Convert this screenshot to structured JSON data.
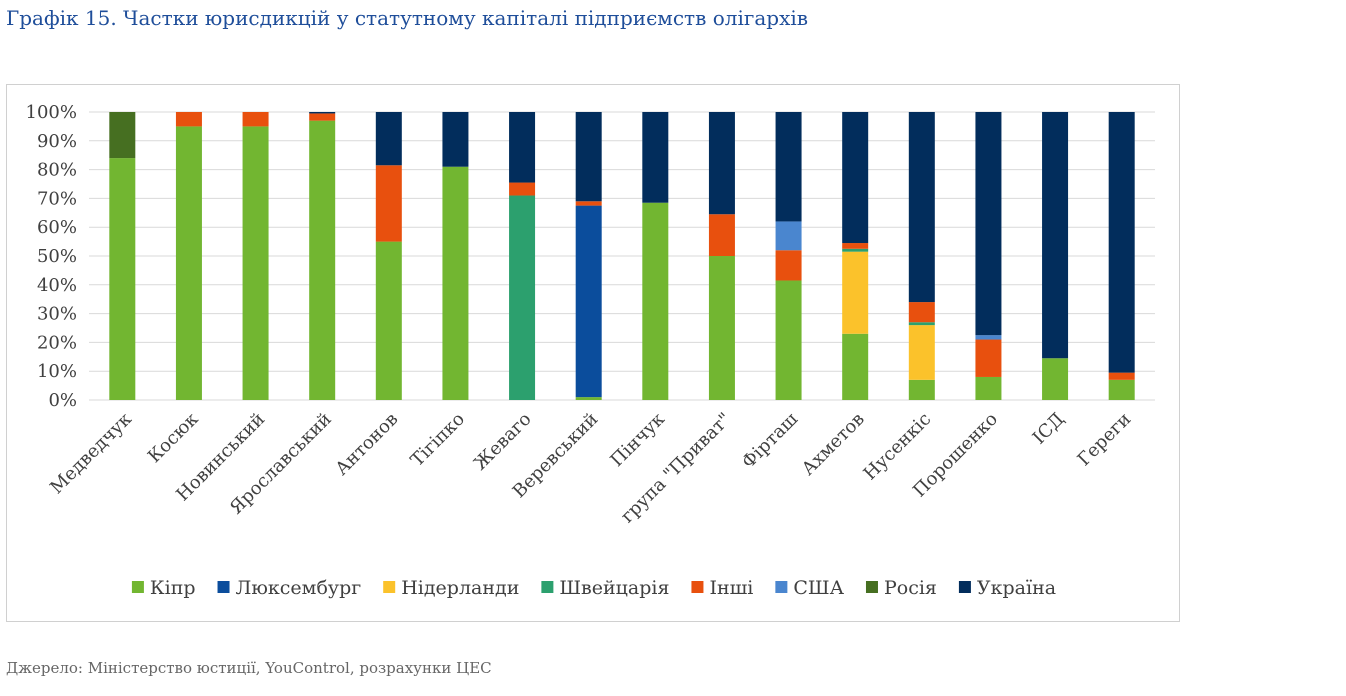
{
  "title": "Графік 15. Частки юрисдикцій у статутному капіталі підприємств олігархів",
  "source": "Джерело: Міністерство юстиції, YouControl, розрахунки ЦЕС",
  "chart_data": {
    "type": "bar",
    "stacked": true,
    "ylim": [
      0,
      100
    ],
    "y_ticks": [
      "0%",
      "10%",
      "20%",
      "30%",
      "40%",
      "50%",
      "60%",
      "70%",
      "80%",
      "90%",
      "100%"
    ],
    "grid": true,
    "legend_position": "bottom",
    "categories": [
      "Медведчук",
      "Косюк",
      "Новинський",
      "Ярославський",
      "Антонов",
      "Тігіпко",
      "Жеваго",
      "Веревський",
      "Пінчук",
      "група \"Приват\"",
      "Фірташ",
      "Ахметов",
      "Нусенкіс",
      "Порошенко",
      "ІСД",
      "Гереги"
    ],
    "series": [
      {
        "name": "Кіпр",
        "color": "#72b631",
        "values": [
          84,
          95,
          95,
          97,
          55,
          81,
          0,
          1,
          68.5,
          50,
          41.5,
          23,
          7,
          8,
          14.5,
          7
        ]
      },
      {
        "name": "Люксембург",
        "color": "#0b4d9c",
        "values": [
          0,
          0,
          0,
          0,
          0,
          0,
          0,
          66.5,
          0,
          0,
          0,
          0,
          0,
          0,
          0,
          0
        ]
      },
      {
        "name": "Нідерланди",
        "color": "#fbc22b",
        "values": [
          0,
          0,
          0,
          0,
          0,
          0,
          0,
          0,
          0,
          0,
          0,
          28.5,
          19,
          0,
          0,
          0
        ]
      },
      {
        "name": "Швейцарія",
        "color": "#2ca06e",
        "values": [
          0,
          0,
          0,
          0,
          0,
          0,
          71,
          0,
          0,
          0,
          0,
          1,
          1,
          0,
          0,
          0
        ]
      },
      {
        "name": "Інші",
        "color": "#e8500e",
        "values": [
          0,
          5,
          5,
          2.5,
          26.5,
          0,
          4.5,
          1.5,
          0,
          14.5,
          10.5,
          2,
          7,
          13,
          0,
          2.5
        ]
      },
      {
        "name": "США",
        "color": "#4a86cf",
        "values": [
          0,
          0,
          0,
          0,
          0,
          0,
          0,
          0,
          0,
          0,
          10,
          0,
          0,
          1.5,
          0,
          0
        ]
      },
      {
        "name": "Росія",
        "color": "#466f21",
        "values": [
          16,
          0,
          0,
          0,
          0,
          0,
          0,
          0,
          0,
          0,
          0,
          0,
          0,
          0,
          0,
          0
        ]
      },
      {
        "name": "Україна",
        "color": "#022d5c",
        "values": [
          0,
          0,
          0,
          0.5,
          18.5,
          19,
          24.5,
          31,
          31.5,
          35.5,
          38,
          45.5,
          66,
          77.5,
          85.5,
          90.5
        ]
      }
    ]
  }
}
